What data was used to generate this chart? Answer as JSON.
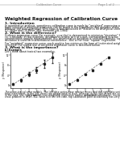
{
  "header_text": "Weighted Regression of Calibration Curve",
  "page_header_left": "Calibration Curve",
  "page_header_right": "Page 1 of 2",
  "section1_title": "1. Introduction",
  "section1_body": [
    "In quantitative analysis, sometimes calibration curve is made by \"weighted\" regression analysis. The",
    "basic concept of weighted regression can be found in the hypothesis that variance of the data may",
    "differ for the level of analyte. This topic is well discussed in \"Statistics for Analytical Chemistry\"",
    "(J.C.Miller and J.N.Miller, Ellis Horwood Ltd, 1984)"
  ],
  "section2_title": "2. What is the difference?",
  "section2_body": [
    "Ordinary regression curve (for example, y=a+bx) is determined to minimize \"deviation\" from data",
    "i.e. y-residual. In this example, deviation is largest at 0 of x-axis, corresponding to a low",
    "concentration analyte measurement. But when relative deviation is selected carefully, square of",
    "deviation is used for mathematical convenience - this is the least \"square\" regression.",
    "",
    "For \"weighted\" regression curve, each analyte has minimum the form of (estimated weight) is",
    "selected. The typical use of weighted regression curve is described below."
  ],
  "section3_title": "3. What is the importance?",
  "section3_sub": "b) Example",
  "section3_body": "Let's think about typical two examples.",
  "plot_xdata": [
    0,
    2,
    4,
    6,
    8,
    10
  ],
  "plot_ydata": [
    0.5,
    2.0,
    4.5,
    6.0,
    8.5,
    11.0
  ],
  "plot_xfit": [
    0,
    10
  ],
  "plot_yfit": [
    0.2,
    11.2
  ],
  "plot1_error": [
    0.4,
    0.5,
    0.8,
    1.1,
    1.5,
    2.0
  ],
  "plot2_error": [
    0.25,
    0.25,
    0.25,
    0.25,
    0.25,
    0.25
  ],
  "plot1_xlabel": "x (conc.)",
  "plot2_xlabel": "x (conc.)",
  "plot_ylabel": "y (Response)",
  "footer_lines": [
    "These are typical error models. The left data series have relative errors and the right data series",
    "have fixed errors. In the left, errors are proportional to level, whereas in the right errors are constant.",
    "In the case (the right), normal (non-weighted) regression makes sense (homoscedastic), except for the",
    "cross problem in chart. But, what is in the left case, top calibration point accidentally has very large"
  ],
  "bg_color": "#ffffff",
  "text_color": "#111111",
  "gray_color": "#888888",
  "pdf_bg": "#cc0000",
  "fig_width": 1.49,
  "fig_height": 1.98,
  "dpi": 100
}
